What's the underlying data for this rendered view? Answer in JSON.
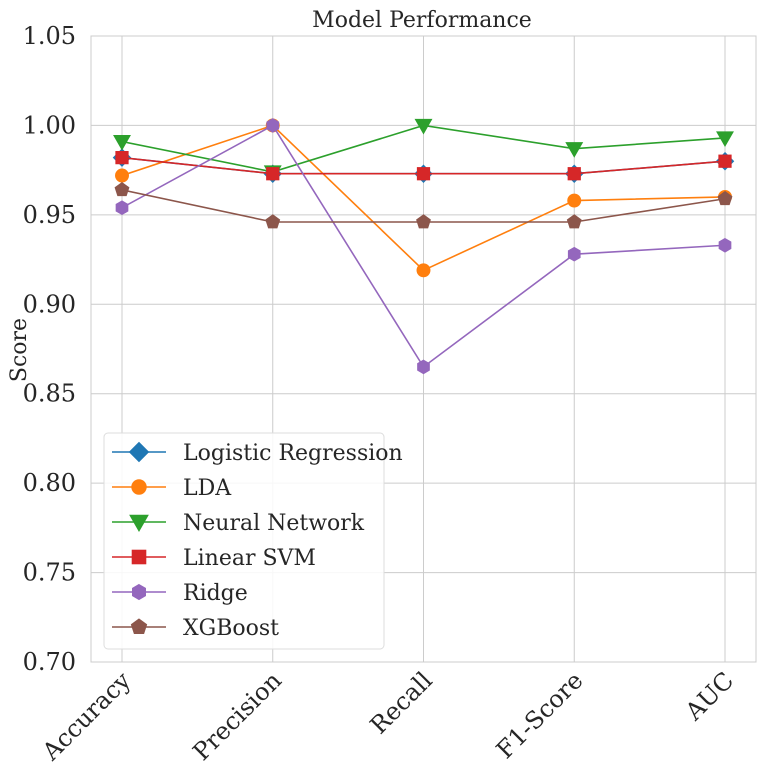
{
  "chart_data": {
    "type": "line",
    "title": "Model Performance",
    "xlabel": "",
    "ylabel": "Score",
    "categories": [
      "Accuracy",
      "Precision",
      "Recall",
      "F1-Score",
      "AUC"
    ],
    "ylim": [
      0.7,
      1.05
    ],
    "yticks": [
      "0.70",
      "0.75",
      "0.80",
      "0.85",
      "0.90",
      "0.95",
      "1.00",
      "1.05"
    ],
    "grid": true,
    "legend_position": "lower-left",
    "series": [
      {
        "name": "Logistic Regression",
        "color": "#1f77b4",
        "marker": "diamond",
        "values": [
          0.982,
          0.973,
          0.973,
          0.973,
          0.98
        ]
      },
      {
        "name": "LDA",
        "color": "#ff7f0e",
        "marker": "circle",
        "values": [
          0.972,
          1.0,
          0.919,
          0.958,
          0.96
        ]
      },
      {
        "name": "Neural Network",
        "color": "#2ca02c",
        "marker": "triangle-down",
        "values": [
          0.991,
          0.974,
          1.0,
          0.987,
          0.993
        ]
      },
      {
        "name": "Linear SVM",
        "color": "#d62728",
        "marker": "square",
        "values": [
          0.982,
          0.973,
          0.973,
          0.973,
          0.98
        ]
      },
      {
        "name": "Ridge",
        "color": "#9467bd",
        "marker": "hexagon",
        "values": [
          0.954,
          1.0,
          0.865,
          0.928,
          0.933
        ]
      },
      {
        "name": "XGBoost",
        "color": "#8c564b",
        "marker": "pentagon",
        "values": [
          0.964,
          0.946,
          0.946,
          0.946,
          0.959
        ]
      }
    ]
  }
}
